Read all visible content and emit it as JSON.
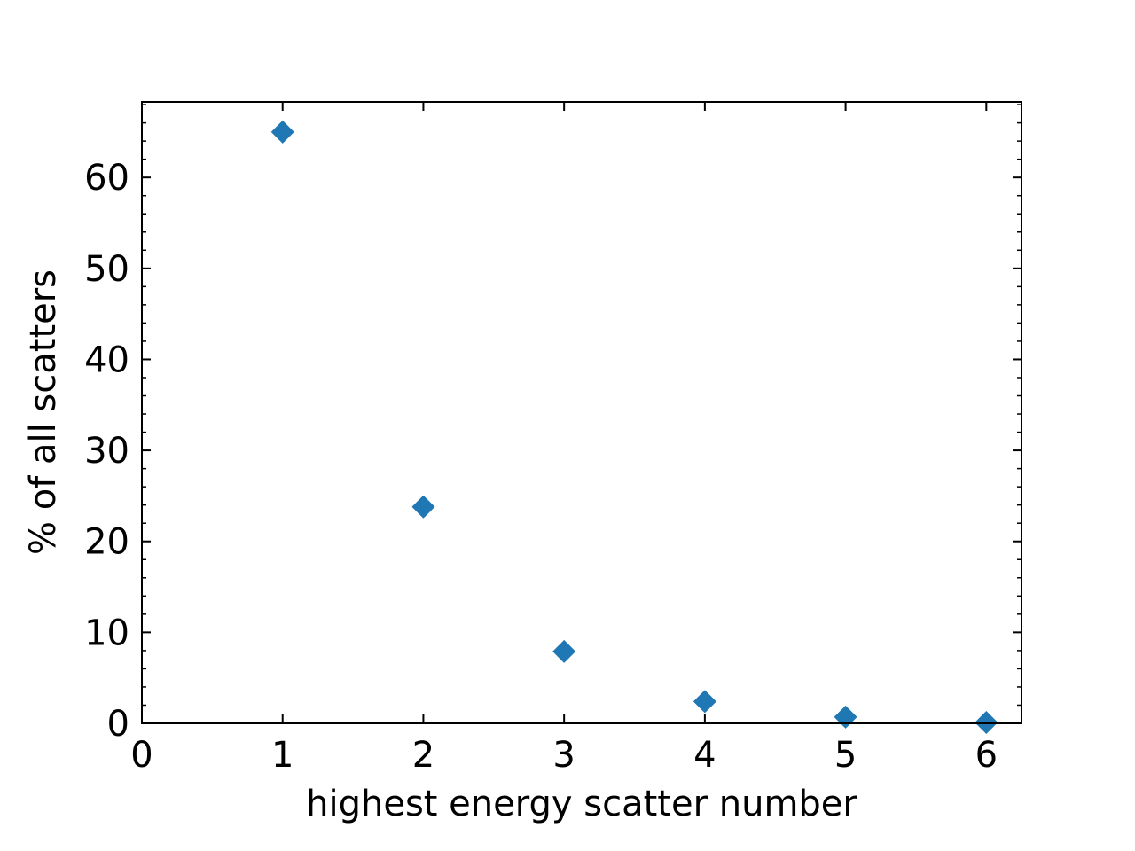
{
  "chart_data": {
    "type": "scatter",
    "title": "",
    "xlabel": "highest energy scatter number",
    "ylabel": "% of all scatters",
    "xlim": [
      0,
      6.25
    ],
    "ylim": [
      0,
      68.3
    ],
    "x_ticks": [
      0,
      1,
      2,
      3,
      4,
      5,
      6
    ],
    "x_tick_labels": [
      "0",
      "1",
      "2",
      "3",
      "4",
      "5",
      "6"
    ],
    "y_ticks": [
      0,
      10,
      20,
      30,
      40,
      50,
      60
    ],
    "y_tick_labels": [
      "0",
      "10",
      "20",
      "30",
      "40",
      "50",
      "60"
    ],
    "y_minor_step": 2,
    "grid": false,
    "marker": "diamond",
    "color": "#1f77b4",
    "series": [
      {
        "x": [
          1,
          2,
          3,
          4,
          5,
          6
        ],
        "y": [
          65.0,
          23.8,
          7.9,
          2.4,
          0.7,
          0.1
        ]
      }
    ]
  }
}
